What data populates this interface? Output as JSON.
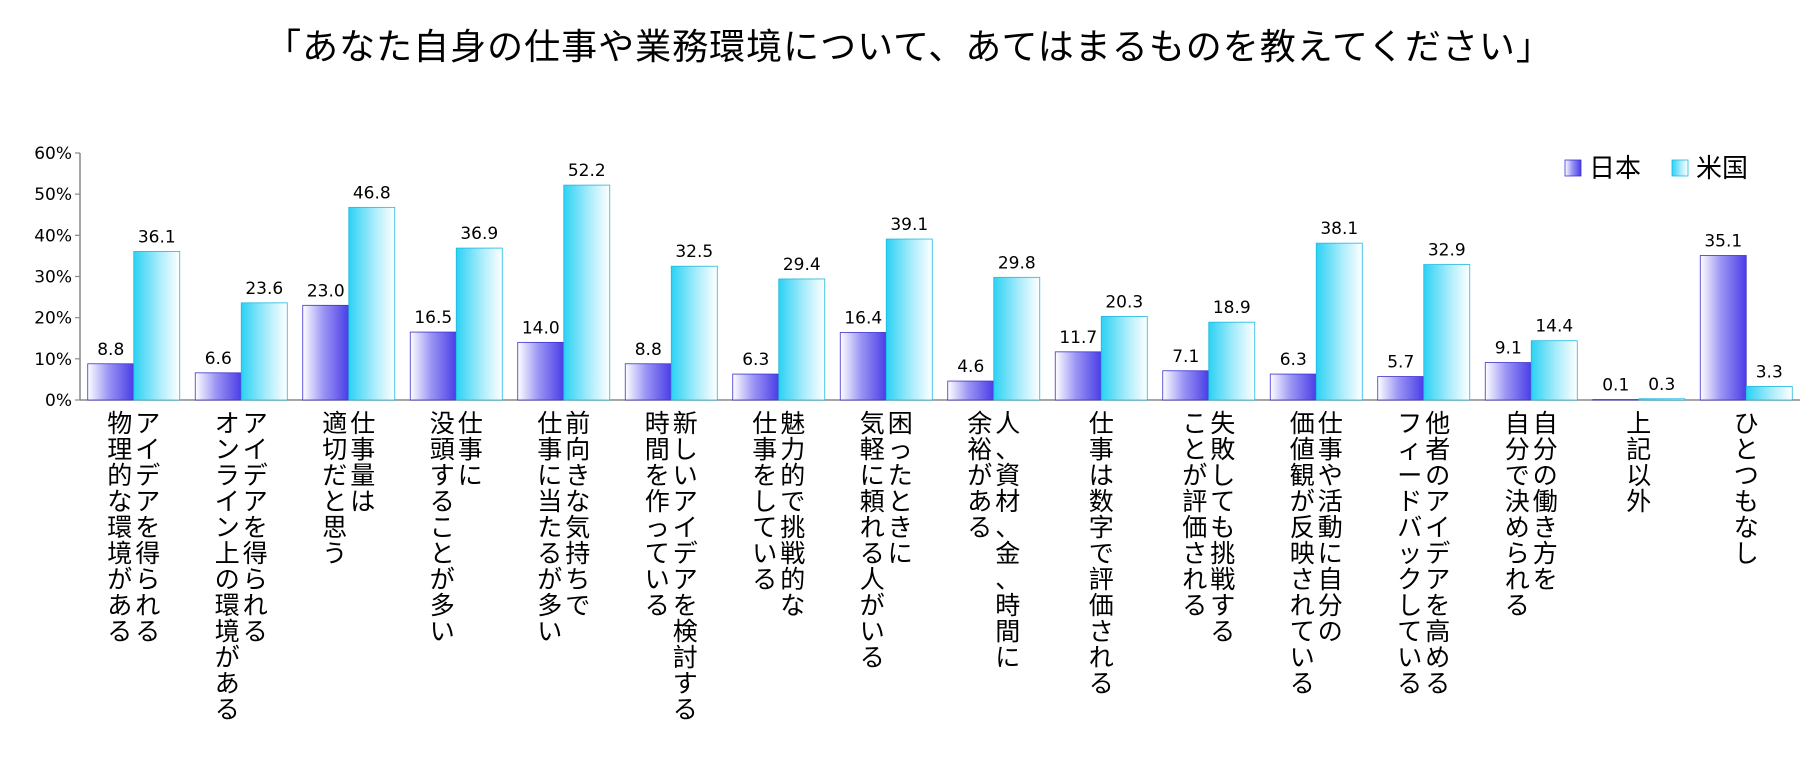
{
  "chart_data": {
    "type": "bar",
    "title": "「あなた自身の仕事や業務環境について、あてはまるものを教えてください」",
    "xlabel": "",
    "ylabel": "",
    "ylim": [
      0,
      60
    ],
    "yticks": [
      "0%",
      "10%",
      "20%",
      "30%",
      "40%",
      "50%",
      "60%"
    ],
    "legend_position": "top-right",
    "categories": [
      [
        "アイデアを得られる",
        "物理的な環境がある"
      ],
      [
        "アイデアを得られる",
        "オンライン上の環境がある"
      ],
      [
        "仕事量は",
        "適切だと思う"
      ],
      [
        "仕事に",
        "没頭することが多い"
      ],
      [
        "前向きな気持ちで",
        "仕事に当たるが多い"
      ],
      [
        "新しいアイデアを検討する",
        "時間を作っている"
      ],
      [
        "魅力的で挑戦的な",
        "仕事をしている"
      ],
      [
        "困ったときに",
        "気軽に頼れる人がいる"
      ],
      [
        "人、資材、金、時間に",
        "余裕がある"
      ],
      [
        "仕事は数字で評価される"
      ],
      [
        "失敗しても挑戦する",
        "ことが評価される"
      ],
      [
        "仕事や活動に自分の",
        "価値観が反映されている"
      ],
      [
        "他者のアイデアを高める",
        "フィードバックしている"
      ],
      [
        "自分の働き方を",
        "自分で決められる"
      ],
      [
        "上記以外"
      ],
      [
        "ひとつもなし"
      ]
    ],
    "series": [
      {
        "name": "日本",
        "color": "#5c50e8",
        "values": [
          8.8,
          6.6,
          23.0,
          16.5,
          14.0,
          8.8,
          6.3,
          16.4,
          4.6,
          11.7,
          7.1,
          6.3,
          5.7,
          9.1,
          0.1,
          35.1
        ],
        "labels": [
          "8.8",
          "6.6",
          "23.0",
          "16.5",
          "14.0",
          "8.8",
          "6.3",
          "16.4",
          "4.6",
          "11.7",
          "7.1",
          "6.3",
          "5.7",
          "9.1",
          "0.1",
          "35.1"
        ]
      },
      {
        "name": "米国",
        "color": "#3fd8f6",
        "values": [
          36.1,
          23.6,
          46.8,
          36.9,
          52.2,
          32.5,
          29.4,
          39.1,
          29.8,
          20.3,
          18.9,
          38.1,
          32.9,
          14.4,
          0.3,
          3.3
        ],
        "labels": [
          "36.1",
          "23.6",
          "46.8",
          "36.9",
          "52.2",
          "32.5",
          "29.4",
          "39.1",
          "29.8",
          "20.3",
          "18.9",
          "38.1",
          "32.9",
          "14.4",
          "0.3",
          "3.3"
        ]
      }
    ]
  }
}
